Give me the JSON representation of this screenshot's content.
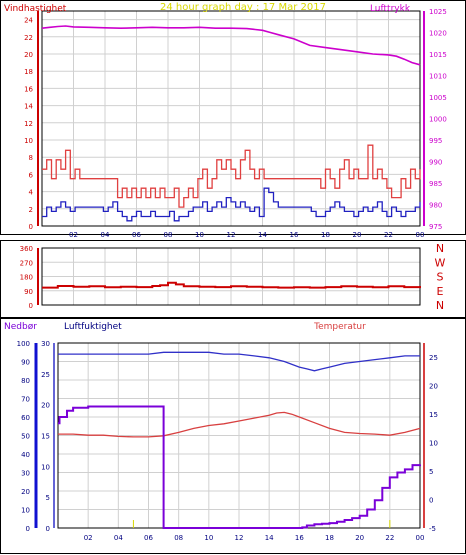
{
  "title": "24 hour graph day : 17 Mar 2017",
  "colors": {
    "background": "#ffffff",
    "frame": "#000000",
    "grid": "#d0d0d0",
    "wind": "#cc0000",
    "pressure": "#cc00cc",
    "gust_line": "#e04040",
    "avg_line": "#2020c0",
    "humidity": "#3030c8",
    "temperature": "#d84040",
    "rain": "#7a00d8",
    "rain_axis": "#1010d0",
    "title": "#d8d800",
    "direction_labels": "#cc0000"
  },
  "chart_data": [
    {
      "type": "line",
      "title": "24 hour graph day : 17 Mar 2017",
      "ylabel": "Vindhastighet",
      "y2label": "Lufttrykk",
      "xlim": [
        0,
        24
      ],
      "x_ticks": [
        "02",
        "04",
        "06",
        "08",
        "10",
        "12",
        "14",
        "16",
        "18",
        "20",
        "22",
        "00"
      ],
      "ylim": [
        0,
        25
      ],
      "y_ticks": [
        0,
        2,
        4,
        6,
        8,
        10,
        12,
        14,
        16,
        18,
        20,
        22,
        24
      ],
      "y2lim": [
        975,
        1025
      ],
      "y2_ticks": [
        975,
        980,
        985,
        990,
        995,
        1000,
        1005,
        1010,
        1015,
        1020,
        1025
      ],
      "series": [
        {
          "axis": "y2",
          "color": "pressure",
          "x": [
            0,
            0.5,
            1,
            1.5,
            2,
            3,
            4,
            5,
            6,
            7,
            8,
            9,
            10,
            11,
            12,
            13,
            14,
            14.5,
            15,
            16,
            17,
            18,
            19,
            20,
            21,
            22,
            22.5,
            23,
            23.5,
            24
          ],
          "values": [
            1021,
            1021.2,
            1021.4,
            1021.5,
            1021.3,
            1021.2,
            1021.1,
            1021,
            1021.1,
            1021.2,
            1021.1,
            1021.1,
            1021.2,
            1021,
            1021,
            1020.9,
            1020.5,
            1020,
            1019.5,
            1018.5,
            1017,
            1016.5,
            1016,
            1015.5,
            1015,
            1014.8,
            1014.5,
            1013.8,
            1013,
            1012.5
          ]
        },
        {
          "axis": "y",
          "color": "gust_line",
          "x": [
            0,
            0.3,
            0.6,
            0.9,
            1.2,
            1.5,
            1.8,
            2.1,
            2.4,
            2.7,
            3.0,
            3.3,
            3.6,
            3.9,
            4.2,
            4.5,
            4.8,
            5.1,
            5.4,
            5.7,
            6.0,
            6.3,
            6.6,
            6.9,
            7.2,
            7.5,
            7.8,
            8.1,
            8.4,
            8.7,
            9.0,
            9.3,
            9.6,
            9.9,
            10.2,
            10.5,
            10.8,
            11.1,
            11.4,
            11.7,
            12.0,
            12.3,
            12.6,
            12.9,
            13.2,
            13.5,
            13.8,
            14.1,
            14.4,
            14.7,
            15.0,
            15.3,
            15.6,
            15.9,
            16.2,
            16.5,
            16.8,
            17.1,
            17.4,
            17.7,
            18.0,
            18.3,
            18.6,
            18.9,
            19.2,
            19.5,
            19.8,
            20.1,
            20.4,
            20.7,
            21.0,
            21.3,
            21.6,
            21.9,
            22.2,
            22.5,
            22.8,
            23.1,
            23.4,
            23.7,
            24.0
          ],
          "values": [
            6.6,
            7.7,
            5.5,
            7.7,
            6.6,
            8.8,
            5.5,
            6.6,
            5.5,
            5.5,
            5.5,
            5.5,
            5.5,
            5.5,
            5.5,
            5.5,
            3.3,
            4.4,
            3.3,
            4.4,
            3.3,
            4.4,
            3.3,
            4.4,
            3.3,
            4.4,
            3.3,
            3.3,
            4.4,
            2.2,
            3.3,
            4.4,
            3.3,
            5.5,
            6.6,
            4.4,
            5.5,
            7.7,
            6.6,
            7.7,
            6.6,
            5.5,
            7.7,
            8.8,
            6.6,
            5.5,
            6.6,
            5.5,
            5.5,
            5.5,
            5.5,
            5.5,
            5.5,
            5.5,
            5.5,
            5.5,
            5.5,
            5.5,
            5.5,
            4.4,
            6.6,
            5.5,
            4.4,
            6.6,
            7.7,
            5.5,
            6.6,
            5.5,
            5.5,
            9.4,
            5.5,
            6.6,
            5.5,
            4.4,
            3.3,
            3.3,
            5.5,
            4.4,
            6.6,
            5.5,
            6.6
          ]
        },
        {
          "axis": "y",
          "color": "avg_line",
          "x": [
            0,
            0.3,
            0.6,
            0.9,
            1.2,
            1.5,
            1.8,
            2.1,
            2.4,
            2.7,
            3.0,
            3.3,
            3.6,
            3.9,
            4.2,
            4.5,
            4.8,
            5.1,
            5.4,
            5.7,
            6.0,
            6.3,
            6.6,
            6.9,
            7.2,
            7.5,
            7.8,
            8.1,
            8.4,
            8.7,
            9.0,
            9.3,
            9.6,
            9.9,
            10.2,
            10.5,
            10.8,
            11.1,
            11.4,
            11.7,
            12.0,
            12.3,
            12.6,
            12.9,
            13.2,
            13.5,
            13.8,
            14.1,
            14.4,
            14.7,
            15.0,
            15.3,
            15.6,
            15.9,
            16.2,
            16.5,
            16.8,
            17.1,
            17.4,
            17.7,
            18.0,
            18.3,
            18.6,
            18.9,
            19.2,
            19.5,
            19.8,
            20.1,
            20.4,
            20.7,
            21.0,
            21.3,
            21.6,
            21.9,
            22.2,
            22.5,
            22.8,
            23.1,
            23.4,
            23.7,
            24.0
          ],
          "values": [
            1.1,
            2.2,
            1.7,
            2.2,
            2.8,
            2.2,
            1.7,
            2.2,
            2.2,
            2.2,
            2.2,
            2.2,
            2.2,
            1.7,
            2.2,
            2.8,
            1.7,
            1.1,
            0.6,
            1.1,
            1.7,
            1.1,
            1.1,
            1.7,
            1.1,
            1.1,
            1.1,
            1.7,
            0.6,
            1.1,
            1.1,
            1.7,
            2.2,
            2.2,
            2.8,
            1.7,
            2.2,
            2.8,
            2.2,
            3.3,
            2.8,
            2.2,
            2.8,
            2.2,
            1.7,
            2.2,
            1.1,
            4.4,
            3.9,
            2.8,
            2.2,
            2.2,
            2.2,
            2.2,
            2.2,
            2.2,
            2.2,
            1.7,
            1.1,
            1.1,
            1.7,
            2.2,
            2.8,
            2.2,
            1.7,
            1.7,
            1.1,
            1.7,
            2.2,
            1.7,
            2.2,
            2.8,
            1.7,
            1.1,
            2.2,
            1.7,
            1.1,
            1.7,
            1.7,
            2.2,
            2.8
          ]
        }
      ]
    },
    {
      "type": "line",
      "xlim": [
        0,
        24
      ],
      "ylim": [
        0,
        360
      ],
      "y_ticks": [
        0,
        90,
        180,
        270,
        360
      ],
      "direction_labels": [
        "N",
        "W",
        "S",
        "E",
        "N"
      ],
      "series": [
        {
          "color": "wind",
          "x": [
            0,
            1,
            2,
            3,
            4,
            5,
            6,
            7,
            7.5,
            8,
            8.5,
            9,
            10,
            11,
            12,
            13,
            14,
            15,
            16,
            17,
            18,
            19,
            20,
            21,
            22,
            23,
            24
          ],
          "values": [
            110,
            120,
            115,
            118,
            112,
            115,
            113,
            120,
            125,
            140,
            130,
            118,
            115,
            113,
            118,
            115,
            112,
            110,
            112,
            110,
            113,
            118,
            115,
            112,
            118,
            113,
            120
          ]
        }
      ]
    },
    {
      "type": "line",
      "ylabel": "Nedbør",
      "y_inner_label": "Luftfuktighet",
      "y2label": "Temperatur",
      "xlim": [
        0,
        24
      ],
      "x_ticks": [
        "02",
        "04",
        "06",
        "08",
        "10",
        "12",
        "14",
        "16",
        "18",
        "20",
        "22",
        "00"
      ],
      "rain_ylim": [
        0,
        30
      ],
      "rain_ticks": [
        0,
        5,
        10,
        15,
        20,
        25,
        30
      ],
      "humidity_ylim": [
        0,
        100
      ],
      "humidity_ticks": [
        0,
        10,
        20,
        30,
        40,
        50,
        60,
        70,
        80,
        90,
        100
      ],
      "temp_ylim": [
        -5,
        27.5
      ],
      "temp_ticks": [
        -5,
        0,
        5,
        10,
        15,
        20,
        25
      ],
      "series": [
        {
          "axis": "humidity",
          "color": "humidity",
          "x": [
            0,
            2,
            4,
            6,
            7,
            8,
            9,
            10,
            11,
            12,
            13,
            14,
            15,
            16,
            16.5,
            17,
            17.5,
            18,
            19,
            20,
            21,
            22,
            23,
            24
          ],
          "values": [
            94,
            94,
            94,
            94,
            95,
            95,
            95,
            95,
            94,
            94,
            93,
            92,
            90,
            87,
            86,
            85,
            86,
            87,
            89,
            90,
            91,
            92,
            93,
            93
          ]
        },
        {
          "axis": "temp",
          "color": "temperature",
          "x": [
            0,
            1,
            2,
            3,
            4,
            5,
            6,
            7,
            8,
            9,
            10,
            11,
            12,
            13,
            14,
            14.5,
            15,
            15.5,
            16,
            17,
            18,
            19,
            20,
            21,
            22,
            23,
            24
          ],
          "values": [
            11.5,
            11.5,
            11.3,
            11.3,
            11.1,
            11,
            11,
            11.2,
            11.8,
            12.5,
            13,
            13.3,
            13.8,
            14.3,
            14.8,
            15.2,
            15.3,
            15,
            14.5,
            13.5,
            12.5,
            11.8,
            11.6,
            11.5,
            11.3,
            11.8,
            12.5
          ]
        },
        {
          "axis": "rain",
          "color": "rain",
          "x": [
            0,
            0.1,
            0.6,
            1.0,
            1.5,
            2,
            6.9,
            7.0,
            16,
            16.2,
            16.5,
            17,
            17.5,
            18,
            18.5,
            19,
            19.5,
            20,
            20.5,
            21,
            21.5,
            22,
            22.5,
            23,
            23.5,
            24
          ],
          "values": [
            17,
            18,
            19,
            19.5,
            19.5,
            19.7,
            19.7,
            0,
            0,
            0.1,
            0.4,
            0.6,
            0.7,
            0.8,
            1.0,
            1.3,
            1.6,
            2.0,
            3.0,
            4.5,
            6.5,
            8.2,
            9.0,
            9.5,
            10.2,
            10.3
          ]
        }
      ]
    }
  ]
}
